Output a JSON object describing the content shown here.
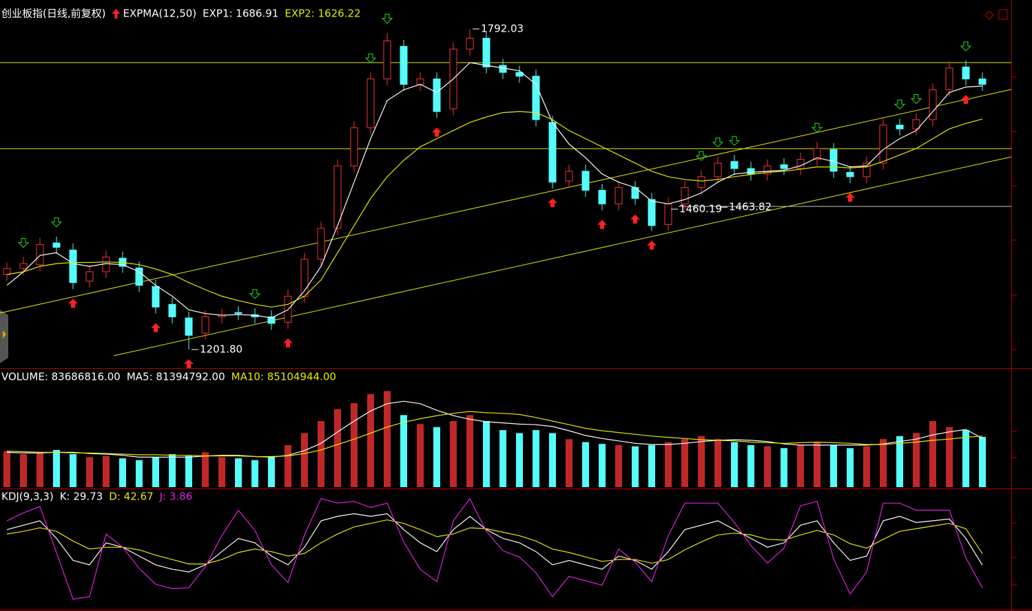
{
  "chart_data": [
    {
      "type": "candlestick",
      "title": "创业板指(日线,前复权)",
      "indicator": "EXPMA(12,50)",
      "title_color": "#ffffff",
      "up_color": "#ff3232",
      "down_color": "#54fcfc",
      "ylim": [
        1167.6,
        1845.3
      ],
      "open": [
        1340,
        1351,
        1358,
        1398,
        1385,
        1328,
        1345,
        1370,
        1352,
        1318,
        1285,
        1260,
        1232,
        1262,
        1270,
        1266,
        1262,
        1252,
        1300,
        1368,
        1425,
        1540,
        1610,
        1700,
        1760,
        1690,
        1700,
        1645,
        1755,
        1775,
        1725,
        1712,
        1705,
        1620,
        1512,
        1530,
        1495,
        1470,
        1500,
        1478,
        1432,
        1470,
        1500,
        1520,
        1548,
        1535,
        1525,
        1542,
        1535,
        1552,
        1570,
        1528,
        1520,
        1545,
        1615,
        1608,
        1625,
        1680,
        1722,
        1700
      ],
      "high": [
        1362,
        1372,
        1407,
        1410,
        1397,
        1357,
        1384,
        1382,
        1364,
        1330,
        1297,
        1272,
        1274,
        1277,
        1282,
        1278,
        1274,
        1312,
        1380,
        1437,
        1552,
        1622,
        1712,
        1785,
        1772,
        1712,
        1712,
        1767,
        1792.03,
        1787,
        1737,
        1724,
        1717,
        1632,
        1542,
        1542,
        1507,
        1512,
        1512,
        1490,
        1482,
        1512,
        1532,
        1557,
        1560,
        1547,
        1552,
        1554,
        1564,
        1584,
        1582,
        1540,
        1557,
        1627,
        1627,
        1637,
        1692,
        1732,
        1734,
        1712
      ],
      "low": [
        1328,
        1339,
        1346,
        1378,
        1313,
        1316,
        1333,
        1343,
        1308,
        1268,
        1250,
        1201.8,
        1220,
        1250,
        1256,
        1250,
        1238,
        1240,
        1288,
        1356,
        1413,
        1528,
        1598,
        1688,
        1678,
        1678,
        1628,
        1633,
        1743,
        1710,
        1700,
        1693,
        1613,
        1498,
        1500,
        1483,
        1458,
        1458,
        1468,
        1420,
        1420,
        1458,
        1488,
        1508,
        1523,
        1513,
        1513,
        1523,
        1523,
        1540,
        1518,
        1508,
        1508,
        1533,
        1596,
        1596,
        1613,
        1668,
        1688,
        1678
      ],
      "close": [
        1351,
        1360,
        1395,
        1390,
        1325,
        1345,
        1372,
        1355,
        1320,
        1280,
        1262,
        1228,
        1262,
        1265,
        1268,
        1262,
        1250,
        1300,
        1368,
        1425,
        1540,
        1610,
        1700,
        1770,
        1690,
        1700,
        1640,
        1755,
        1775,
        1722,
        1712,
        1705,
        1625,
        1510,
        1530,
        1495,
        1470,
        1500,
        1480,
        1430,
        1470,
        1500,
        1520,
        1545,
        1535,
        1525,
        1540,
        1535,
        1552,
        1572,
        1530,
        1520,
        1545,
        1615,
        1608,
        1625,
        1680,
        1720,
        1700,
        1690
      ],
      "series": [
        {
          "name": "EXP1: 1686.91",
          "color": "#ffffff",
          "values": [
            1320,
            1345,
            1375,
            1380,
            1360,
            1355,
            1360,
            1358,
            1345,
            1320,
            1300,
            1275,
            1268,
            1265,
            1266,
            1265,
            1260,
            1275,
            1310,
            1355,
            1430,
            1510,
            1590,
            1660,
            1680,
            1690,
            1675,
            1700,
            1730,
            1725,
            1720,
            1715,
            1690,
            1620,
            1580,
            1555,
            1525,
            1510,
            1500,
            1475,
            1470,
            1478,
            1490,
            1510,
            1525,
            1528,
            1530,
            1532,
            1540,
            1555,
            1548,
            1538,
            1540,
            1570,
            1590,
            1605,
            1640,
            1675,
            1685,
            1686.91
          ]
        },
        {
          "name": "EXP2: 1626.22",
          "color": "#e8e800",
          "values": [
            1340,
            1345,
            1355,
            1360,
            1362,
            1362,
            1363,
            1362,
            1358,
            1350,
            1340,
            1325,
            1312,
            1300,
            1292,
            1285,
            1280,
            1285,
            1300,
            1330,
            1380,
            1430,
            1480,
            1520,
            1550,
            1575,
            1590,
            1605,
            1620,
            1630,
            1638,
            1640,
            1638,
            1625,
            1605,
            1590,
            1575,
            1560,
            1545,
            1530,
            1520,
            1515,
            1512,
            1515,
            1520,
            1524,
            1528,
            1530,
            1534,
            1538,
            1538,
            1536,
            1538,
            1548,
            1560,
            1572,
            1590,
            1608,
            1618,
            1626.22
          ]
        }
      ],
      "hlines": [
        {
          "value": 1730,
          "color": "#e8e800"
        },
        {
          "value": 1571.7,
          "color": "#e8e800"
        }
      ],
      "trendlines": [
        {
          "color": "#e8e800",
          "x": [
            -0.42,
            60.75
          ],
          "y": [
            1269,
            1680.6
          ]
        },
        {
          "color": "#e8e800",
          "x": [
            6.46,
            60.75
          ],
          "y": [
            1190.4,
            1556.5
          ]
        },
        {
          "color": "#c8c8c8",
          "x": [
            40.6,
            60.75
          ],
          "y": [
            1465.3,
            1465.3
          ]
        }
      ],
      "annotations": [
        {
          "index": 28,
          "value": 1792.03,
          "label": "1792.03"
        },
        {
          "index": 11,
          "value": 1201.8,
          "label": "1201.80"
        },
        {
          "index": 40,
          "value": 1460.19,
          "label": "1460.19"
        },
        {
          "index": 43,
          "value": 1463.82,
          "label": "1463.82"
        }
      ],
      "buy_color": "#ff2020",
      "sell_color": "#20e020",
      "buy_signals": [
        4,
        9,
        11,
        17,
        26,
        33,
        36,
        38,
        39,
        51,
        58
      ],
      "sell_signals": [
        1,
        3,
        15,
        22,
        23,
        42,
        43,
        44,
        49,
        54,
        55,
        58
      ]
    },
    {
      "type": "bar",
      "up_color": "#c02828",
      "down_color": "#54fcfc",
      "ylim": [
        0,
        165000000
      ],
      "series": [
        {
          "name": "VOLUME: 83686816.00",
          "color": "#ffffff",
          "values": [
            60000000.0,
            55000000.0,
            58000000.0,
            62000000.0,
            55000000.0,
            50000000.0,
            52000000.0,
            48000000.0,
            45000000.0,
            50000000.0,
            55000000.0,
            52000000.0,
            58000000.0,
            50000000.0,
            48000000.0,
            45000000.0,
            50000000.0,
            70000000.0,
            90000000.0,
            110000000.0,
            130000000.0,
            140000000.0,
            155000000.0,
            160000000.0,
            120000000.0,
            105000000.0,
            100000000.0,
            110000000.0,
            120000000.0,
            110000000.0,
            95000000.0,
            90000000.0,
            95000000.0,
            90000000.0,
            80000000.0,
            75000000.0,
            72000000.0,
            70000000.0,
            68000000.0,
            70000000.0,
            75000000.0,
            80000000.0,
            85000000.0,
            80000000.0,
            75000000.0,
            70000000.0,
            68000000.0,
            65000000.0,
            70000000.0,
            75000000.0,
            70000000.0,
            65000000.0,
            68000000.0,
            80000000.0,
            85000000.0,
            90000000.0,
            110000000.0,
            100000000.0,
            95000000.0,
            83686816
          ]
        },
        {
          "name": "MA5: 81394792.00",
          "color": "#ffffff",
          "values": [
            58000000.0,
            57000000.0,
            57000000.0,
            58000000.0,
            58000000.0,
            56000000.0,
            55000000.0,
            53000000.0,
            50000000.0,
            50000000.0,
            50000000.0,
            50000000.0,
            52000000.0,
            53000000.0,
            53000000.0,
            51000000.0,
            50000000.0,
            53000000.0,
            61000000.0,
            73000000.0,
            92000000.0,
            110000000.0,
            127000000.0,
            139000000.0,
            143000000.0,
            139000000.0,
            128000000.0,
            119000000.0,
            113000000.0,
            109000000.0,
            107000000.0,
            105000000.0,
            104000000.0,
            101000000.0,
            94000000.0,
            86000000.0,
            81000000.0,
            77000000.0,
            73000000.0,
            71000000.0,
            71000000.0,
            73000000.0,
            76000000.0,
            78000000.0,
            79000000.0,
            78000000.0,
            76000000.0,
            72000000.0,
            70000000.0,
            70000000.0,
            70000000.0,
            70000000.0,
            70000000.0,
            72000000.0,
            76000000.0,
            80000000.0,
            87000000.0,
            92000000.0,
            96000000.0,
            81394792
          ]
        },
        {
          "name": "MA10: 85104944.00",
          "color": "#e8e800",
          "values": [
            60000000.0,
            59000000.0,
            58000000.0,
            58000000.0,
            57000000.0,
            57000000.0,
            56000000.0,
            55000000.0,
            54000000.0,
            54000000.0,
            53000000.0,
            53000000.0,
            52000000.0,
            52000000.0,
            52000000.0,
            51000000.0,
            51000000.0,
            52000000.0,
            56000000.0,
            62000000.0,
            71000000.0,
            80000000.0,
            90000000.0,
            100000000.0,
            108000000.0,
            114000000.0,
            119000000.0,
            123000000.0,
            126000000.0,
            124000000.0,
            123000000.0,
            121000000.0,
            116000000.0,
            110000000.0,
            104000000.0,
            98000000.0,
            94000000.0,
            91000000.0,
            88000000.0,
            85000000.0,
            83000000.0,
            81000000.0,
            79000000.0,
            78000000.0,
            77000000.0,
            75000000.0,
            74000000.0,
            73000000.0,
            74000000.0,
            75000000.0,
            74000000.0,
            73000000.0,
            71000000.0,
            71000000.0,
            73000000.0,
            75000000.0,
            78000000.0,
            80000000.0,
            83000000.0,
            85104944
          ]
        }
      ]
    },
    {
      "type": "line",
      "title": "KDJ(9,3,3)",
      "title_color": "#ffffff",
      "ylim": [
        -20,
        115
      ],
      "series": [
        {
          "name": "K: 29.73",
          "color": "#ffffff",
          "values": [
            70,
            75,
            80,
            60,
            35,
            30,
            55,
            50,
            40,
            30,
            25,
            22,
            30,
            45,
            60,
            55,
            40,
            30,
            50,
            80,
            85,
            88,
            85,
            88,
            70,
            55,
            45,
            70,
            85,
            70,
            60,
            55,
            45,
            30,
            35,
            30,
            25,
            40,
            35,
            25,
            45,
            70,
            75,
            80,
            70,
            60,
            50,
            55,
            75,
            80,
            55,
            35,
            40,
            80,
            85,
            78,
            80,
            82,
            60,
            29.73
          ]
        },
        {
          "name": "D: 42.67",
          "color": "#e8e800",
          "values": [
            65,
            68,
            72,
            68,
            57,
            48,
            50,
            50,
            47,
            41,
            36,
            31,
            31,
            36,
            44,
            48,
            45,
            40,
            43,
            55,
            65,
            73,
            77,
            81,
            77,
            70,
            62,
            65,
            72,
            71,
            67,
            63,
            57,
            48,
            44,
            39,
            34,
            36,
            36,
            32,
            36,
            47,
            56,
            64,
            66,
            64,
            59,
            58,
            64,
            69,
            64,
            54,
            49,
            59,
            68,
            71,
            74,
            77,
            71,
            42.67
          ]
        },
        {
          "name": "J: 3.86",
          "color": "#e020e0",
          "values": [
            80,
            89,
            96,
            44,
            -9,
            -6,
            65,
            50,
            26,
            8,
            3,
            4,
            28,
            63,
            92,
            69,
            30,
            10,
            64,
            105,
            100,
            102,
            95,
            100,
            56,
            25,
            11,
            80,
            105,
            68,
            46,
            39,
            21,
            -6,
            17,
            12,
            7,
            48,
            33,
            11,
            63,
            100,
            100,
            100,
            78,
            52,
            32,
            49,
            97,
            102,
            37,
            -3,
            22,
            100,
            100,
            92,
            92,
            92,
            38,
            3.86
          ]
        }
      ]
    }
  ]
}
